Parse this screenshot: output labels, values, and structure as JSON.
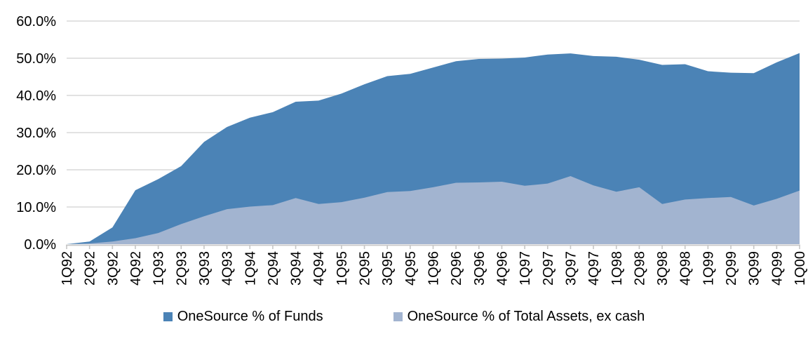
{
  "chart_data": {
    "type": "area",
    "title": "",
    "xlabel": "",
    "ylabel": "",
    "overlapping": true,
    "categories": [
      "1Q92",
      "2Q92",
      "3Q92",
      "4Q92",
      "1Q93",
      "2Q93",
      "3Q93",
      "4Q93",
      "1Q94",
      "2Q94",
      "3Q94",
      "4Q94",
      "1Q95",
      "2Q95",
      "3Q95",
      "4Q95",
      "1Q96",
      "2Q96",
      "3Q96",
      "4Q96",
      "1Q97",
      "2Q97",
      "3Q97",
      "4Q97",
      "1Q98",
      "2Q98",
      "3Q98",
      "4Q98",
      "1Q99",
      "2Q99",
      "3Q99",
      "4Q99",
      "1Q00"
    ],
    "series": [
      {
        "name": "OneSource % of Funds",
        "color": "#4b83b6",
        "values": [
          0.0,
          0.7,
          4.5,
          14.5,
          17.5,
          21.0,
          27.5,
          31.5,
          34.0,
          35.5,
          38.3,
          38.6,
          40.5,
          43.0,
          45.2,
          45.8,
          47.5,
          49.2,
          49.8,
          49.9,
          50.2,
          51.0,
          51.3,
          50.6,
          50.4,
          49.6,
          48.2,
          48.4,
          46.5,
          46.1,
          46.0,
          48.9,
          51.4
        ]
      },
      {
        "name": "OneSource % of Total Assets, ex cash",
        "color": "#a2b4d0",
        "values": [
          0.0,
          0.2,
          0.7,
          1.6,
          3.0,
          5.4,
          7.5,
          9.4,
          10.1,
          10.5,
          12.4,
          10.8,
          11.3,
          12.5,
          14.0,
          14.3,
          15.3,
          16.5,
          16.6,
          16.8,
          15.7,
          16.3,
          18.3,
          15.8,
          14.1,
          15.3,
          10.8,
          12.0,
          12.4,
          12.7,
          10.4,
          12.2,
          14.4
        ]
      }
    ],
    "ylim": [
      0,
      60
    ],
    "y_tick_step": 10,
    "y_tick_labels": [
      "0.0%",
      "10.0%",
      "20.0%",
      "30.0%",
      "40.0%",
      "50.0%",
      "60.0%"
    ],
    "grid": "horizontal",
    "legend_position": "bottom",
    "colors": {
      "gridline": "#d9d9d9",
      "axis": "#c6c6c6",
      "text": "#000000",
      "background": "#ffffff"
    }
  }
}
